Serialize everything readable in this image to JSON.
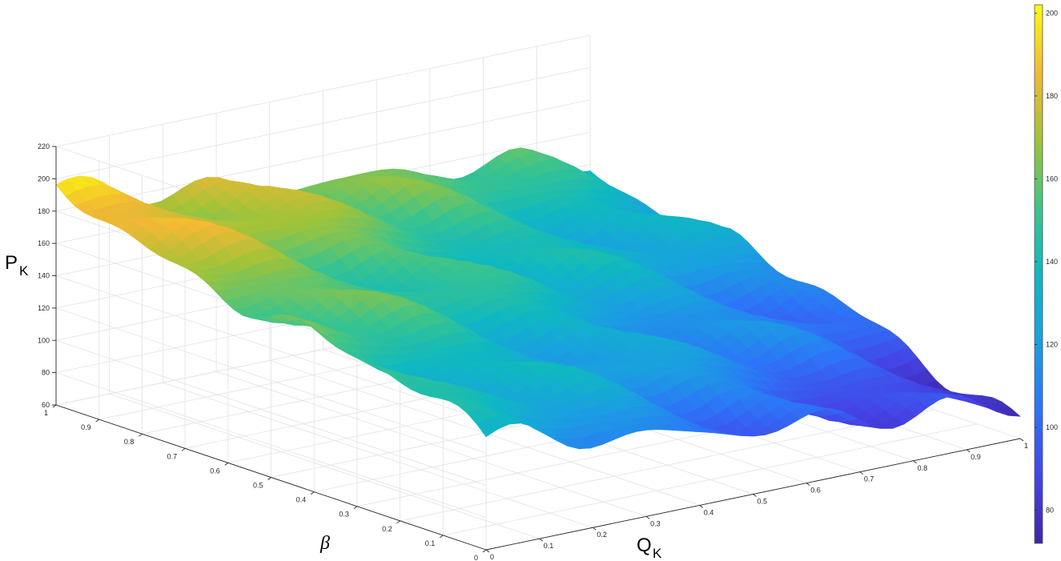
{
  "chart_data": {
    "type": "surface",
    "x_axis": {
      "label_main": "Q",
      "label_sub": "K",
      "ticks": [
        "0",
        "0.1",
        "0.2",
        "0.3",
        "0.4",
        "0.5",
        "0.6",
        "0.7",
        "0.8",
        "0.9",
        "1"
      ],
      "range": [
        0,
        1
      ]
    },
    "y_axis": {
      "label": "β",
      "ticks": [
        "0",
        "0.1",
        "0.2",
        "0.3",
        "0.4",
        "0.5",
        "0.6",
        "0.7",
        "0.8",
        "0.9",
        "1"
      ],
      "range": [
        0,
        1
      ]
    },
    "z_axis": {
      "label_main": "P",
      "label_sub": "K",
      "ticks": [
        "60",
        "80",
        "100",
        "120",
        "140",
        "160",
        "180",
        "200",
        "220"
      ],
      "range": [
        60,
        220
      ]
    },
    "colorbar": {
      "ticks": [
        "80",
        "100",
        "120",
        "140",
        "160",
        "180",
        "200"
      ],
      "range": [
        72,
        202
      ],
      "colormap": "parula"
    },
    "surface_trend": {
      "description_free": true,
      "corner_values": {
        "q0_b0": 130,
        "q1_b0": 76,
        "q0_b1": 193,
        "q1_b1": 140
      },
      "ripple_amplitude": 6
    },
    "grid": true
  }
}
